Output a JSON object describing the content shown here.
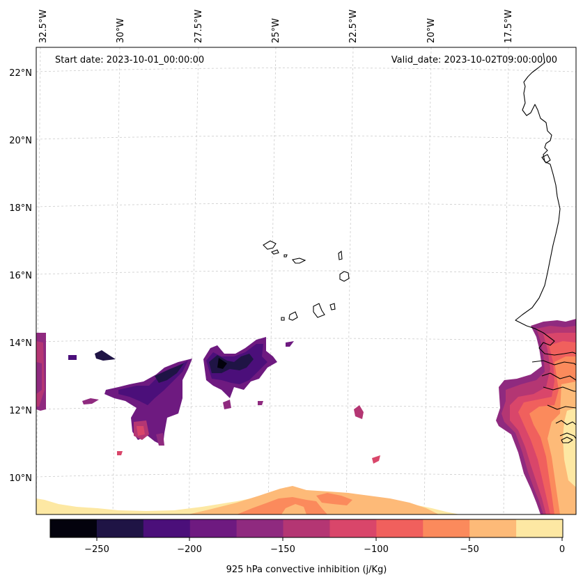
{
  "map": {
    "start_date_label": "Start date: 2023-10-01_00:00:00",
    "valid_date_label": "Valid_date: 2023-10-02T09:00:00.00",
    "lon_ticks": [
      "32.5°W",
      "30°W",
      "27.5°W",
      "25°W",
      "22.5°W",
      "20°W",
      "17.5°W"
    ],
    "lat_ticks": [
      "22°N",
      "20°N",
      "18°N",
      "16°N",
      "14°N",
      "12°N",
      "10°N"
    ],
    "gridlines": true
  },
  "colorbar": {
    "label": "925 hPa convective inhibition (j/Kg)",
    "ticks": [
      "−250",
      "−200",
      "−150",
      "−100",
      "−50",
      "0"
    ],
    "levels": [
      -275,
      -250,
      -225,
      -200,
      -175,
      -150,
      -125,
      -100,
      -75,
      -50,
      -25,
      0
    ],
    "colors": [
      "#03020d",
      "#1f1445",
      "#4b0f7a",
      "#6e1a80",
      "#8f2a7f",
      "#b43673",
      "#d9466a",
      "#f0605d",
      "#fb8a5c",
      "#fdba78",
      "#fde8a3"
    ]
  }
}
